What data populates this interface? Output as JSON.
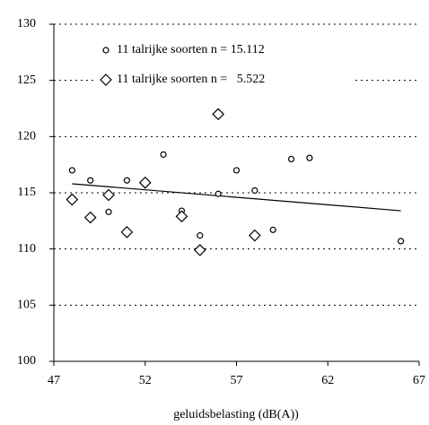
{
  "chart_data": {
    "type": "scatter",
    "xlabel": "geluidsbelasting (dB(A))",
    "xlim": [
      47,
      67
    ],
    "xticks": [
      47,
      52,
      57,
      62,
      67
    ],
    "ylim": [
      100,
      130
    ],
    "yticks": [
      100,
      105,
      110,
      115,
      120,
      125,
      130
    ],
    "grid": true,
    "legend": "top",
    "series": [
      {
        "name": "11 talrijke soorten n = 15.112",
        "marker": "circle",
        "color": "#000000",
        "x": [
          48,
          49,
          50,
          51,
          53,
          54,
          55,
          56,
          57,
          58,
          59,
          60,
          61,
          66
        ],
        "values": [
          117.0,
          116.1,
          113.3,
          116.1,
          118.4,
          113.4,
          111.2,
          114.9,
          117.0,
          115.2,
          111.7,
          118.0,
          118.1,
          110.7
        ]
      },
      {
        "name": "11 talrijke soorten n =   5.522",
        "marker": "diamond",
        "color": "#000000",
        "x": [
          48,
          49,
          50,
          51,
          52,
          54,
          55,
          56,
          58
        ],
        "values": [
          114.4,
          112.8,
          114.8,
          111.5,
          115.9,
          112.9,
          109.9,
          122.0,
          111.2
        ]
      }
    ],
    "trendline": {
      "x": [
        48,
        66
      ],
      "values": [
        115.8,
        113.4
      ],
      "color": "#000000"
    }
  }
}
